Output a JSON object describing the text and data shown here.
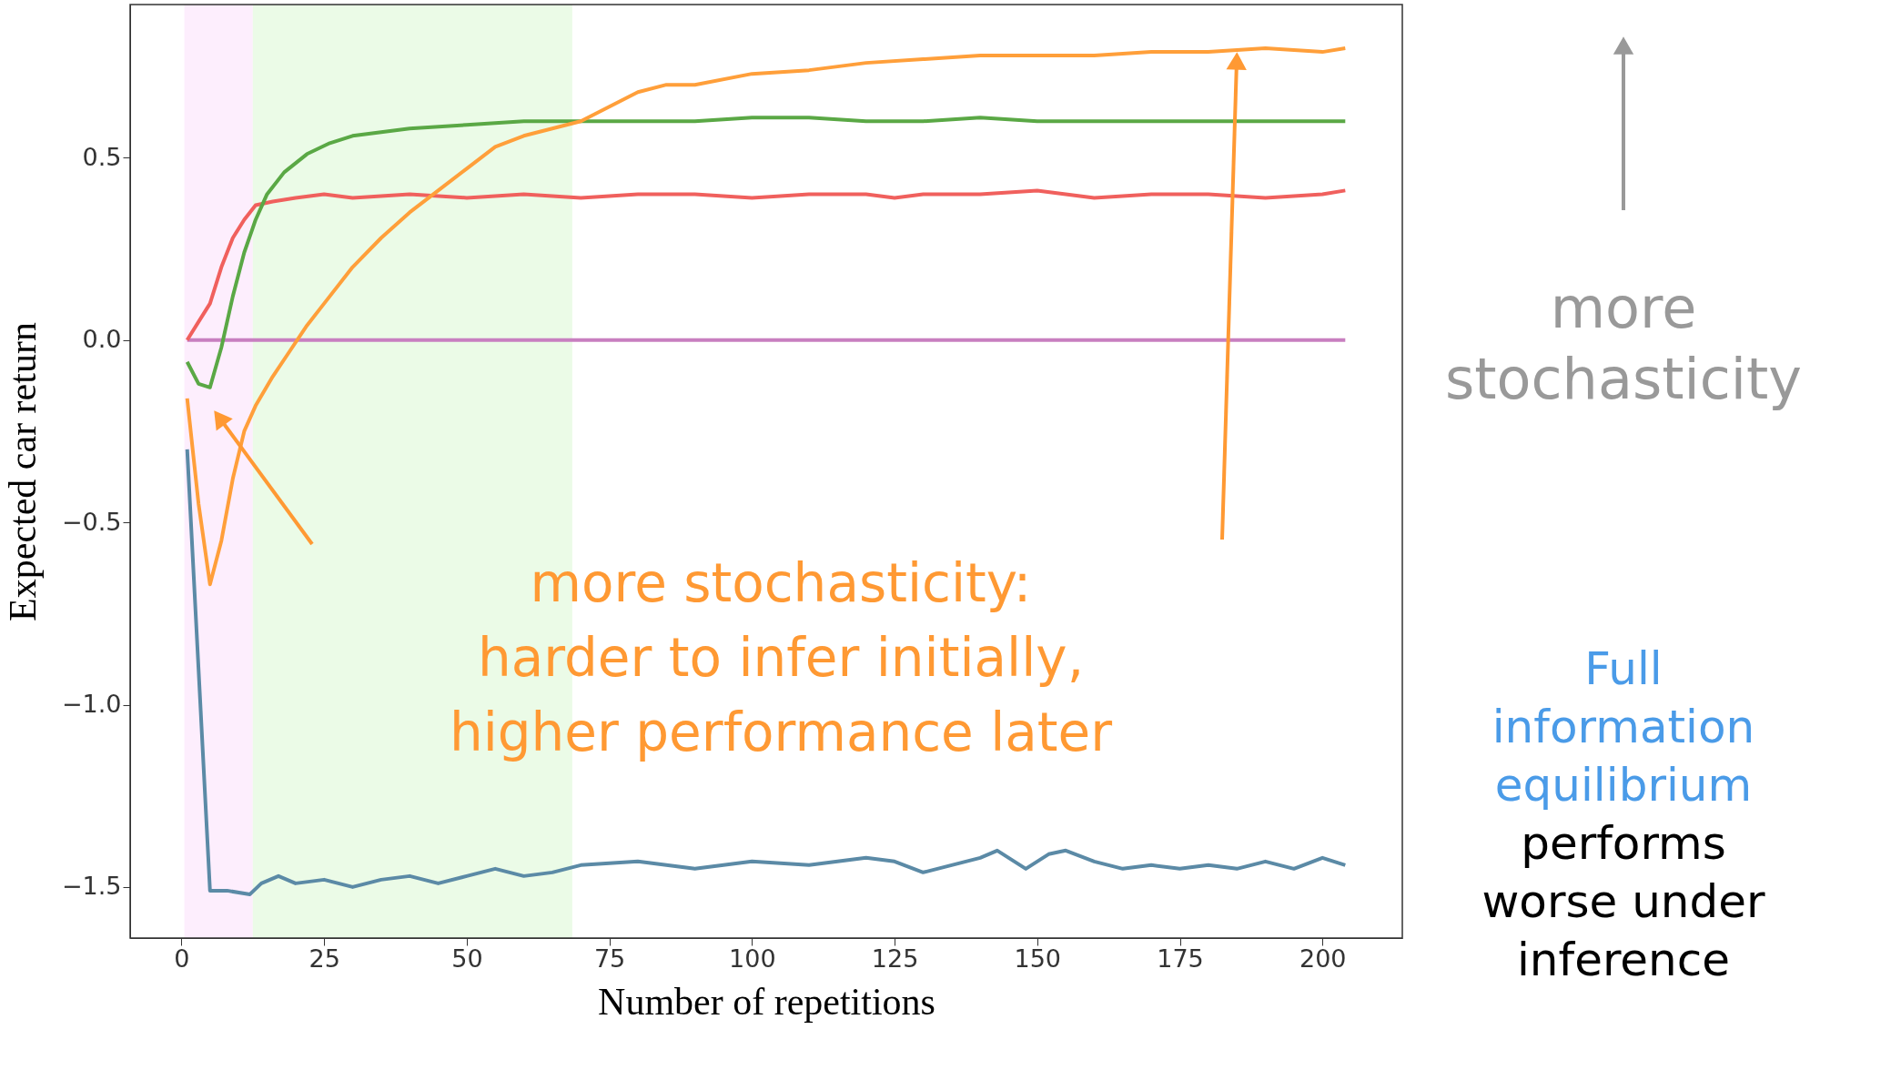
{
  "chart_data": {
    "type": "line",
    "xlabel": "Number of repetitions",
    "ylabel": "Expected car return",
    "xlim": [
      -9,
      214
    ],
    "ylim": [
      -1.64,
      0.92
    ],
    "xticks": [
      0,
      25,
      50,
      75,
      100,
      125,
      150,
      175,
      200
    ],
    "yticks": [
      {
        "value": -1.5,
        "label": "−1.5"
      },
      {
        "value": -1.0,
        "label": "−1.0"
      },
      {
        "value": -0.5,
        "label": "−0.5"
      },
      {
        "value": 0.0,
        "label": "0.0"
      },
      {
        "value": 0.5,
        "label": "0.5"
      }
    ],
    "grid": false,
    "line_style": "solid",
    "bands": [
      {
        "axis": "x",
        "from": 0.5,
        "to": 12.5,
        "color": "#fdeefd"
      },
      {
        "axis": "x",
        "from": 12.5,
        "to": 68.5,
        "color": "#ebfbe7"
      }
    ],
    "series": [
      {
        "color": "#c87fc0",
        "x": [
          1,
          204
        ],
        "values": [
          0.0,
          0.0
        ]
      },
      {
        "color": "#f0605d",
        "x": [
          1,
          3,
          5,
          7,
          9,
          11,
          13,
          16,
          20,
          25,
          30,
          40,
          50,
          60,
          70,
          80,
          90,
          100,
          110,
          120,
          125,
          130,
          140,
          150,
          160,
          170,
          180,
          190,
          200,
          204
        ],
        "values": [
          0.0,
          0.05,
          0.1,
          0.2,
          0.28,
          0.33,
          0.37,
          0.38,
          0.39,
          0.4,
          0.39,
          0.4,
          0.39,
          0.4,
          0.39,
          0.4,
          0.4,
          0.39,
          0.4,
          0.4,
          0.39,
          0.4,
          0.4,
          0.41,
          0.39,
          0.4,
          0.4,
          0.39,
          0.4,
          0.41
        ]
      },
      {
        "color": "#5aa845",
        "x": [
          1,
          3,
          5,
          7,
          9,
          11,
          13,
          15,
          18,
          22,
          26,
          30,
          35,
          40,
          50,
          60,
          70,
          80,
          90,
          100,
          110,
          120,
          130,
          140,
          150,
          160,
          170,
          180,
          190,
          200,
          204
        ],
        "values": [
          -0.06,
          -0.12,
          -0.13,
          -0.02,
          0.12,
          0.24,
          0.33,
          0.4,
          0.46,
          0.51,
          0.54,
          0.56,
          0.57,
          0.58,
          0.59,
          0.6,
          0.6,
          0.6,
          0.6,
          0.61,
          0.61,
          0.6,
          0.6,
          0.61,
          0.6,
          0.6,
          0.6,
          0.6,
          0.6,
          0.6,
          0.6
        ]
      },
      {
        "color": "#ff9f3a",
        "x": [
          1,
          3,
          5,
          7,
          9,
          11,
          13,
          16,
          19,
          22,
          25,
          30,
          35,
          40,
          45,
          50,
          55,
          60,
          65,
          70,
          75,
          80,
          85,
          90,
          100,
          110,
          120,
          130,
          140,
          150,
          160,
          170,
          180,
          190,
          200,
          204
        ],
        "values": [
          -0.16,
          -0.45,
          -0.67,
          -0.55,
          -0.38,
          -0.25,
          -0.18,
          -0.1,
          -0.03,
          0.04,
          0.1,
          0.2,
          0.28,
          0.35,
          0.41,
          0.47,
          0.53,
          0.56,
          0.58,
          0.6,
          0.64,
          0.68,
          0.7,
          0.7,
          0.73,
          0.74,
          0.76,
          0.77,
          0.78,
          0.78,
          0.78,
          0.79,
          0.79,
          0.8,
          0.79,
          0.8
        ]
      },
      {
        "color": "#5b8aa6",
        "x": [
          1,
          5,
          8,
          12,
          14,
          17,
          20,
          25,
          30,
          35,
          40,
          45,
          50,
          55,
          60,
          65,
          70,
          80,
          90,
          100,
          110,
          120,
          125,
          130,
          135,
          140,
          143,
          148,
          152,
          155,
          160,
          165,
          170,
          175,
          180,
          185,
          190,
          195,
          200,
          204
        ],
        "values": [
          -0.3,
          -1.51,
          -1.51,
          -1.52,
          -1.49,
          -1.47,
          -1.49,
          -1.48,
          -1.5,
          -1.48,
          -1.47,
          -1.49,
          -1.47,
          -1.45,
          -1.47,
          -1.46,
          -1.44,
          -1.43,
          -1.45,
          -1.43,
          -1.44,
          -1.42,
          -1.43,
          -1.46,
          -1.44,
          -1.42,
          -1.4,
          -1.45,
          -1.41,
          -1.4,
          -1.43,
          -1.45,
          -1.44,
          -1.45,
          -1.44,
          -1.45,
          -1.43,
          -1.45,
          -1.42,
          -1.44
        ]
      }
    ],
    "annotations": [
      "more stochasticity:\nharder to infer initially,\nhigher performance later",
      "more\nstochasticity",
      "Full\ninformation\nequilibrium",
      "performs\nworse under\ninference"
    ]
  }
}
